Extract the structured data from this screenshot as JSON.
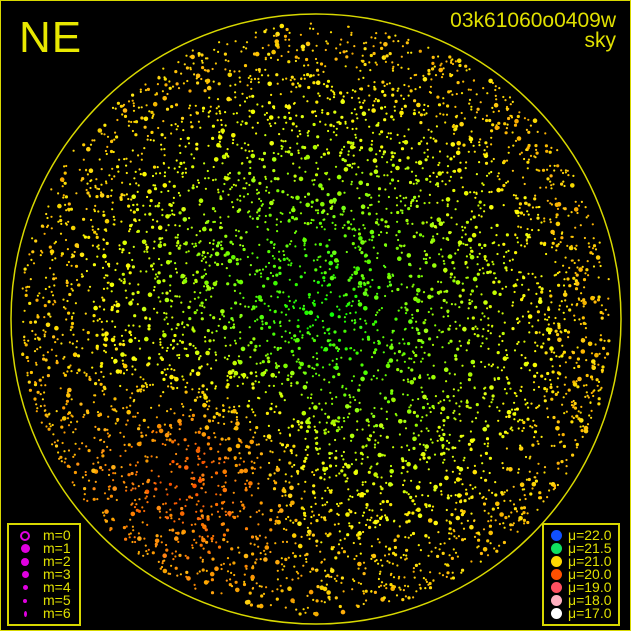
{
  "direction_label": "NE",
  "frame_id": "03k61060o0409w",
  "frame_type": "sky",
  "magnitude_legend": [
    {
      "label": "m=0",
      "size": 10,
      "hollow": true
    },
    {
      "label": "m=1",
      "size": 9
    },
    {
      "label": "m=2",
      "size": 8
    },
    {
      "label": "m=3",
      "size": 7
    },
    {
      "label": "m=4",
      "size": 5
    },
    {
      "label": "m=5",
      "size": 4
    },
    {
      "label": "m=6",
      "size": 3
    }
  ],
  "brightness_legend": [
    {
      "label": "μ=22.0",
      "color": "#1050ff"
    },
    {
      "label": "μ=21.5",
      "color": "#10e060"
    },
    {
      "label": "μ=21.0",
      "color": "#ffd800"
    },
    {
      "label": "μ=20.0",
      "color": "#ff5000"
    },
    {
      "label": "μ=19.0",
      "color": "#ff5060"
    },
    {
      "label": "μ=18.0",
      "color": "#ffb0c0"
    },
    {
      "label": "μ=17.0",
      "color": "#ffffff"
    }
  ],
  "colors": {
    "frame": "#d8d800",
    "legend_marker": "#e000e0"
  }
}
